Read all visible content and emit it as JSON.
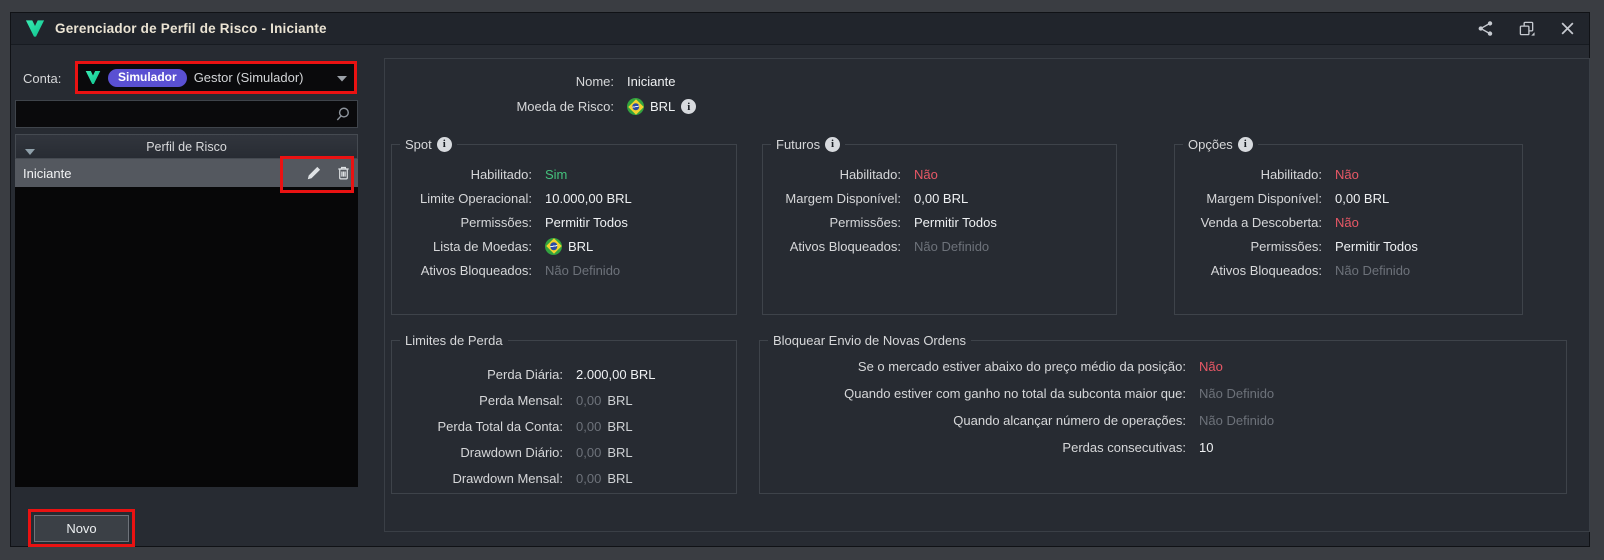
{
  "window": {
    "title": "Gerenciador de Perfil de Risco - Iniciante"
  },
  "sidebar": {
    "account_label": "Conta:",
    "account": {
      "badge": "Simulador",
      "name": "Gestor (Simulador)"
    },
    "search": {
      "value": "",
      "placeholder": ""
    },
    "table": {
      "header": "Perfil de Risco",
      "rows": [
        {
          "name": "Iniciante",
          "selected": true
        }
      ]
    },
    "new_button": "Novo"
  },
  "main": {
    "groups": [
      {
        "id": "header",
        "title": "",
        "info": false,
        "rows": [
          {
            "label": "Nome:",
            "parts": [
              {
                "text": "Iniciante",
                "color": "white"
              }
            ]
          },
          {
            "label": "Moeda de Risco:",
            "parts": [
              {
                "icon": "brazil-flag-icon"
              },
              {
                "text": "BRL",
                "color": "white"
              },
              {
                "icon": "info-icon"
              }
            ]
          }
        ]
      },
      {
        "id": "spot",
        "title": "Spot",
        "info": true,
        "rows": [
          {
            "label": "Habilitado:",
            "parts": [
              {
                "text": "Sim",
                "color": "green"
              }
            ]
          },
          {
            "label": "Limite Operacional:",
            "parts": [
              {
                "text": "10.000,00 BRL",
                "color": "white"
              }
            ]
          },
          {
            "label": "Permissões:",
            "parts": [
              {
                "text": "Permitir Todos",
                "color": "white"
              }
            ]
          },
          {
            "label": "Lista de Moedas:",
            "parts": [
              {
                "icon": "brazil-flag-icon"
              },
              {
                "text": "BRL",
                "color": "white"
              }
            ]
          },
          {
            "label": "Ativos Bloqueados:",
            "parts": [
              {
                "text": "Não Definido",
                "color": "muted"
              }
            ]
          }
        ]
      },
      {
        "id": "futuros",
        "title": "Futuros",
        "info": true,
        "rows": [
          {
            "label": "Habilitado:",
            "parts": [
              {
                "text": "Não",
                "color": "red"
              }
            ]
          },
          {
            "label": "Margem Disponível:",
            "parts": [
              {
                "text": "0,00 BRL",
                "color": "white"
              }
            ]
          },
          {
            "label": "Permissões:",
            "parts": [
              {
                "text": "Permitir Todos",
                "color": "white"
              }
            ]
          },
          {
            "label": "Ativos Bloqueados:",
            "parts": [
              {
                "text": "Não Definido",
                "color": "muted"
              }
            ]
          }
        ]
      },
      {
        "id": "opcoes",
        "title": "Opções",
        "info": true,
        "rows": [
          {
            "label": "Habilitado:",
            "parts": [
              {
                "text": "Não",
                "color": "red"
              }
            ]
          },
          {
            "label": "Margem Disponível:",
            "parts": [
              {
                "text": "0,00 BRL",
                "color": "white"
              }
            ]
          },
          {
            "label": "Venda a Descoberta:",
            "parts": [
              {
                "text": "Não",
                "color": "red"
              }
            ]
          },
          {
            "label": "Permissões:",
            "parts": [
              {
                "text": "Permitir Todos",
                "color": "white"
              }
            ]
          },
          {
            "label": "Ativos Bloqueados:",
            "parts": [
              {
                "text": "Não Definido",
                "color": "muted"
              }
            ]
          }
        ]
      },
      {
        "id": "limites",
        "title": "Limites de Perda",
        "info": false,
        "rows": [
          {
            "label": "Perda Diária:",
            "parts": [
              {
                "text": "2.000,00 BRL",
                "color": "white"
              }
            ]
          },
          {
            "label": "Perda Mensal:",
            "parts": [
              {
                "text": "0,00",
                "color": "muted"
              },
              {
                "text": "BRL",
                "color": "unit"
              }
            ]
          },
          {
            "label": "Perda Total da Conta:",
            "parts": [
              {
                "text": "0,00",
                "color": "muted"
              },
              {
                "text": "BRL",
                "color": "unit"
              }
            ]
          },
          {
            "label": "Drawdown Diário:",
            "parts": [
              {
                "text": "0,00",
                "color": "muted"
              },
              {
                "text": "BRL",
                "color": "unit"
              }
            ]
          },
          {
            "label": "Drawdown Mensal:",
            "parts": [
              {
                "text": "0,00",
                "color": "muted"
              },
              {
                "text": "BRL",
                "color": "unit"
              }
            ]
          }
        ]
      },
      {
        "id": "bloquear",
        "title": "Bloquear Envio de Novas Ordens",
        "info": false,
        "rows": [
          {
            "label": "Se o mercado estiver abaixo do preço médio da posição:",
            "parts": [
              {
                "text": "Não",
                "color": "red"
              }
            ]
          },
          {
            "label": "Quando estiver com ganho no total da subconta maior que:",
            "parts": [
              {
                "text": "Não Definido",
                "color": "muted"
              }
            ]
          },
          {
            "label": "Quando alcançar número de operações:",
            "parts": [
              {
                "text": "Não Definido",
                "color": "muted"
              }
            ]
          },
          {
            "label": "Perdas consecutivas:",
            "parts": [
              {
                "text": "10",
                "color": "white"
              }
            ]
          }
        ]
      }
    ]
  },
  "colors": {
    "accent_teal": "#25e3a4",
    "badge_purple": "#5a50d2",
    "annotation_red": "#ea1212",
    "status_green": "#44c17c",
    "status_red": "#e85866",
    "muted_gray": "#6d727a",
    "value_white": "#eff1f3",
    "titlebar_bg": "#21252c",
    "window_bg": "#272b32"
  },
  "icons": {
    "app-logo-icon": "teal V logo",
    "share-icon": "share nodes",
    "windows-icon": "overlapping windows with arrow",
    "close-icon": "✕",
    "search-icon": "magnifier",
    "sort-icon": "▼",
    "edit-icon": "pencil",
    "delete-icon": "trash can",
    "chevron-down-icon": "▼",
    "brazil-flag-icon": "round Brazil flag",
    "info-icon": "ⓘ"
  }
}
